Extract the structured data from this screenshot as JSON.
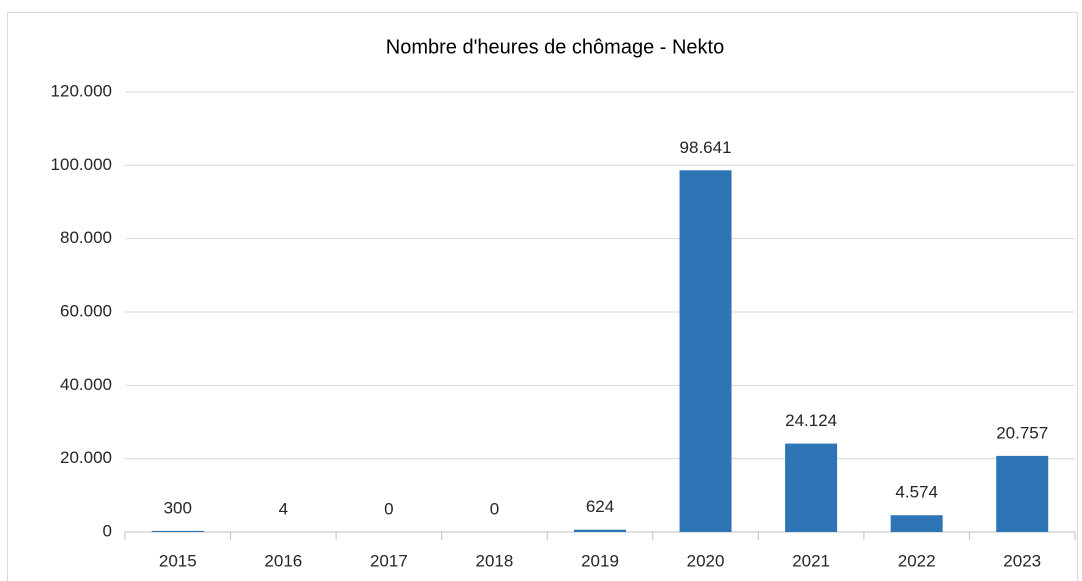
{
  "chart_data": {
    "type": "bar",
    "title": "Nombre d'heures de chômage - Nekto",
    "categories": [
      "2015",
      "2016",
      "2017",
      "2018",
      "2019",
      "2020",
      "2021",
      "2022",
      "2023"
    ],
    "values": [
      300,
      4,
      0,
      0,
      624,
      98641,
      24124,
      4574,
      20757
    ],
    "value_labels": [
      "300",
      "4",
      "0",
      "0",
      "624",
      "98.641",
      "24.124",
      "4.574",
      "20.757"
    ],
    "color": "#2e75b6",
    "ylim": [
      0,
      120000
    ],
    "yticks": [
      0,
      {
        "value": 20000,
        "label": "20.000"
      },
      {
        "value": 40000,
        "label": "40.000"
      },
      {
        "value": 60000,
        "label": "60.000"
      },
      {
        "value": 80000,
        "label": "80.000"
      },
      {
        "value": 100000,
        "label": "100.000"
      },
      {
        "value": 120000,
        "label": "120.000"
      }
    ],
    "grid": true
  }
}
